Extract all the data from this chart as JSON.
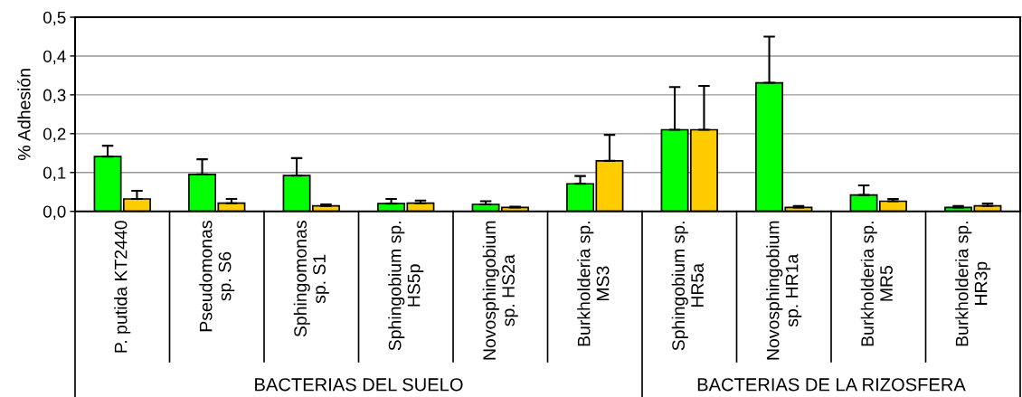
{
  "chart_data": {
    "type": "bar",
    "ylabel": "% Adhesión",
    "categories": [
      "P. putida KT2440",
      "Pseudomonas\nsp. S6",
      "Sphingomonas\nsp. S1",
      "Sphingobium sp.\nHS5p",
      "Novosphingobium\nsp. HS2a",
      "Burkholderia sp.\nMS3",
      "Sphingobium sp.\nHR5a",
      "Novosphingobium\nsp. HR1a",
      "Burkholderia sp.\nMR5",
      "Burkholderia sp.\nHR3p"
    ],
    "series": [
      {
        "color": "#00ff00",
        "values": [
          0.141,
          0.095,
          0.092,
          0.02,
          0.018,
          0.071,
          0.21,
          0.331,
          0.042,
          0.01
        ],
        "errors": [
          [
            0.141,
            0.169
          ],
          [
            0.095,
            0.134
          ],
          [
            0.092,
            0.137
          ],
          [
            0.02,
            0.032
          ],
          [
            0.018,
            0.026
          ],
          [
            0.071,
            0.091
          ],
          [
            0.21,
            0.32
          ],
          [
            0.331,
            0.45
          ],
          [
            0.042,
            0.067
          ],
          [
            0.01,
            0.014
          ]
        ]
      },
      {
        "color": "#ffcc00",
        "values": [
          0.032,
          0.021,
          0.014,
          0.021,
          0.01,
          0.13,
          0.21,
          0.01,
          0.026,
          0.014
        ],
        "errors": [
          [
            0.032,
            0.053
          ],
          [
            0.021,
            0.032
          ],
          [
            0.014,
            0.018
          ],
          [
            0.021,
            0.028
          ],
          [
            0.01,
            0.012
          ],
          [
            0.13,
            0.197
          ],
          [
            0.21,
            0.323
          ],
          [
            0.01,
            0.014
          ],
          [
            0.026,
            0.032
          ],
          [
            0.014,
            0.02
          ]
        ]
      }
    ],
    "ylim": [
      0,
      0.5
    ],
    "yticks": [
      {
        "value": 0,
        "label": "0,0"
      },
      {
        "value": 0.1,
        "label": "0,1"
      },
      {
        "value": 0.2,
        "label": "0,2"
      },
      {
        "value": 0.3,
        "label": "0,3"
      },
      {
        "value": 0.4,
        "label": "0,4"
      },
      {
        "value": 0.5,
        "label": "0,5"
      }
    ],
    "grid": "y",
    "annotations": [
      "BACTERIAS DEL SUELO",
      "BACTERIAS DE LA RIZOSFERA"
    ]
  }
}
